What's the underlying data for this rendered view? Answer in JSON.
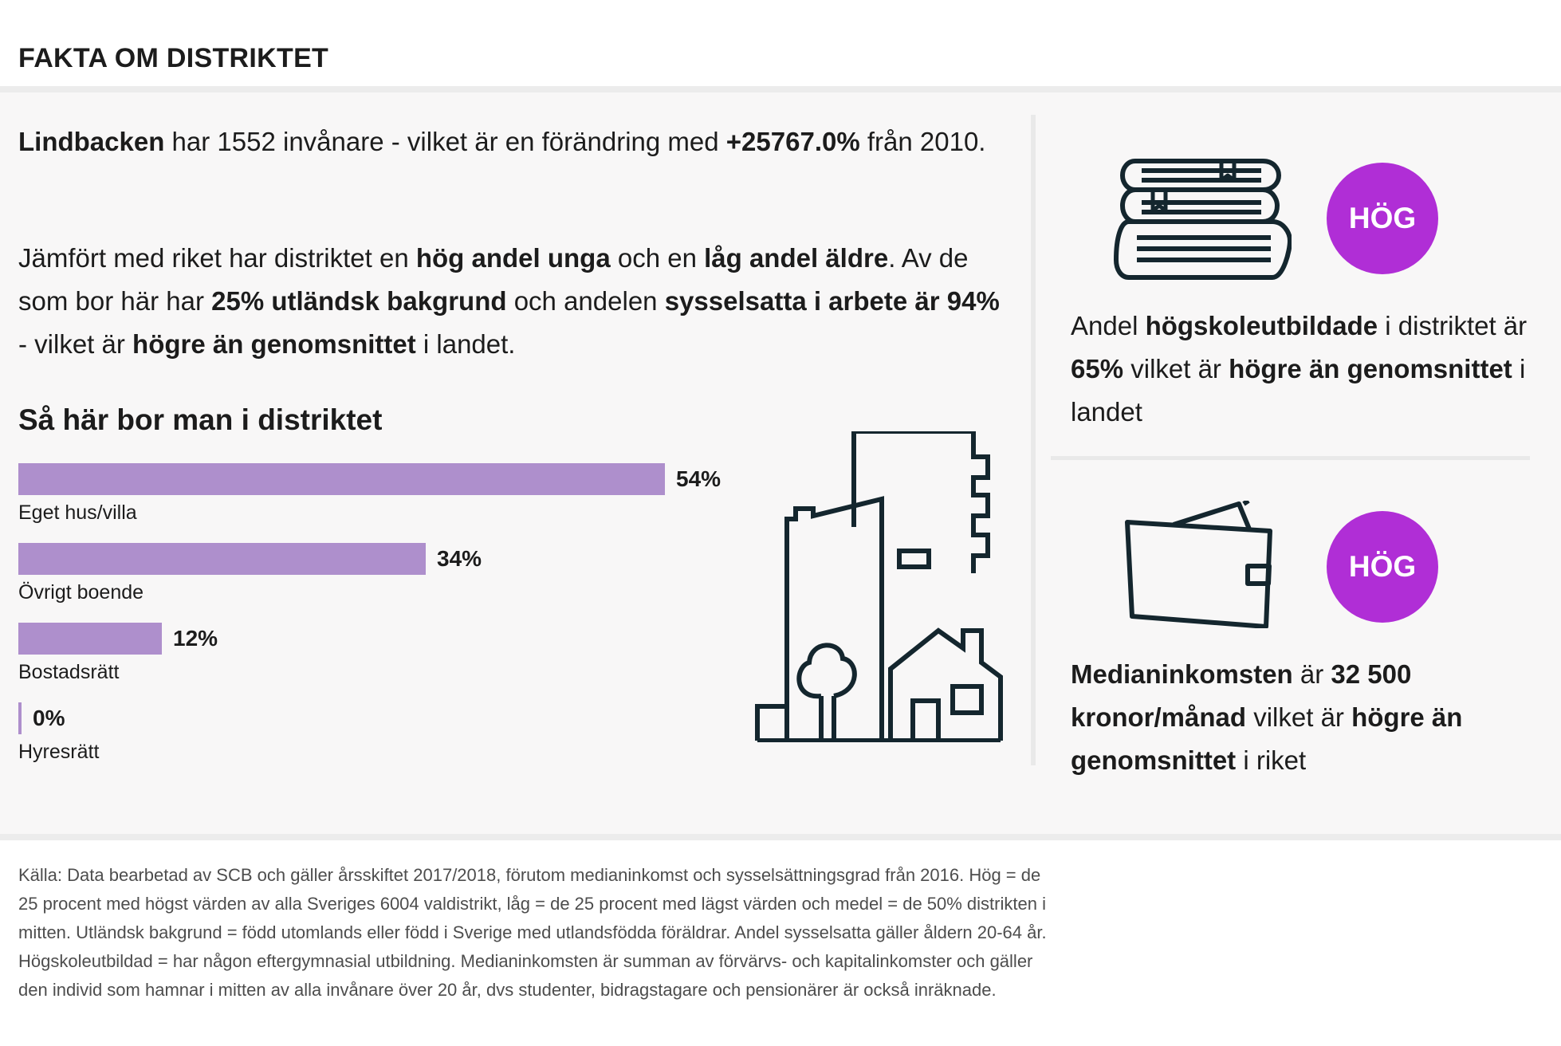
{
  "header": {
    "title": "FAKTA OM DISTRIKTET"
  },
  "summary": {
    "district_name": "Lindbacken",
    "t1": " har 1552 invånare - vilket är en förändring med ",
    "change": "+25767.0%",
    "t2": " från 2010.",
    "t3": "Jämfört med riket har distriktet en ",
    "young": "hög andel unga",
    "t4": " och en ",
    "old": "låg andel äldre",
    "t5": ". Av de som bor här har ",
    "foreign": "25% utländsk bakgrund",
    "t6": " och andelen ",
    "employed": "sysselsatta i arbete är 94%",
    "t7": " - vilket är ",
    "above": "högre än genomsnittet",
    "t8": " i landet."
  },
  "housing": {
    "title": "Så här bor man i distriktet",
    "items": [
      {
        "label": "Eget hus/villa",
        "value_text": "54%",
        "value": 54
      },
      {
        "label": "Övrigt boende",
        "value_text": "34%",
        "value": 34
      },
      {
        "label": "Bostadsrätt",
        "value_text": "12%",
        "value": 12
      },
      {
        "label": "Hyresrätt",
        "value_text": "0%",
        "value": 0
      }
    ],
    "bar_color": "#ae8fcc",
    "icon": "buildings-icon"
  },
  "education": {
    "icon": "books-icon",
    "badge": "HÖG",
    "t1": "Andel ",
    "b1": "högskoleutbildade",
    "t2": " i distriktet är ",
    "b2": "65%",
    "t3": " vilket är ",
    "b3": "högre än genomsnittet",
    "t4": " i landet"
  },
  "income": {
    "icon": "wallet-icon",
    "badge": "HÖG",
    "b1": "Medianinkomsten",
    "t1": " är ",
    "b2": "32 500 kronor/månad",
    "t2": " vilket är ",
    "b3": "högre än genomsnittet",
    "t3": " i riket"
  },
  "badge_color": "#b02ed6",
  "footer": {
    "note": "Källa: Data bearbetad av SCB och gäller årsskiftet 2017/2018, förutom medianinkomst och sysselsättningsgrad från 2016. Hög = de 25 procent med högst värden av alla Sveriges 6004 valdistrikt, låg = de 25 procent med lägst värden och medel = de 50% distrikten i mitten. Utländsk bakgrund = född utomlands eller född i Sverige med utlandsfödda föräldrar. Andel sysselsatta gäller åldern 20-64 år. Högskoleutbildad = har någon eftergymnasial utbildning. Medianinkomsten är summan av förvärvs- och kapitalinkomster och gäller den individ som hamnar i mitten av alla invånare över 20 år, dvs studenter, bidragstagare och pensionärer är också inräknade."
  }
}
